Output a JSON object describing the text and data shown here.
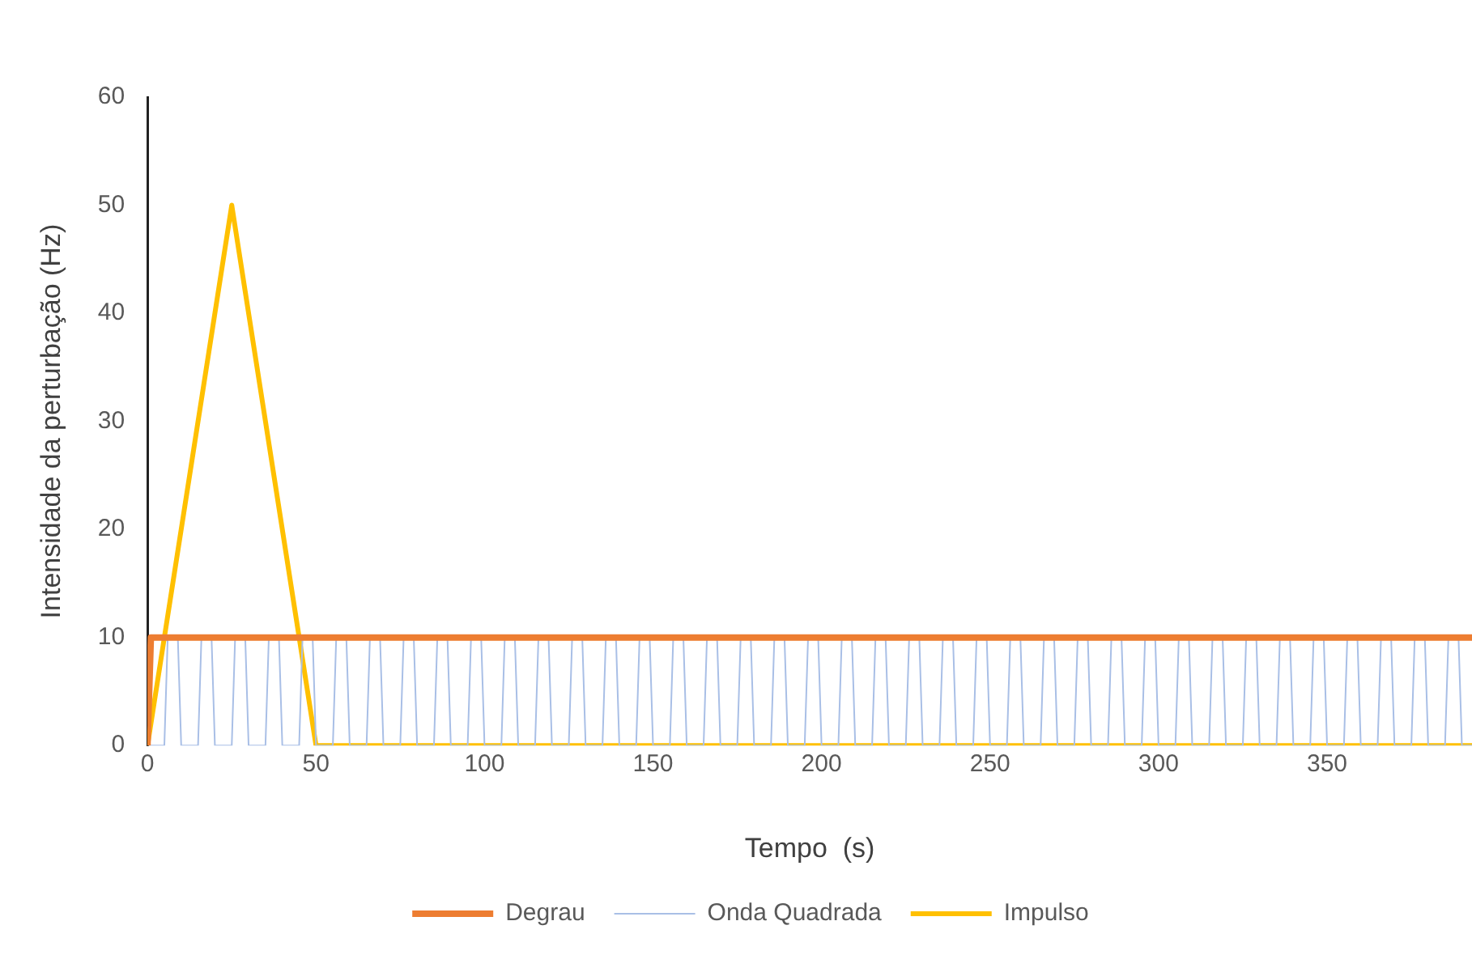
{
  "chart_data": {
    "type": "line",
    "xlabel": "Tempo  (s)",
    "ylabel": "Intensidade da perturbação (Hz)",
    "xlim": [
      0,
      393
    ],
    "xticks": [
      0,
      50,
      100,
      150,
      200,
      250,
      300,
      350
    ],
    "ylim": [
      0,
      60
    ],
    "yticks": [
      0,
      10,
      20,
      30,
      40,
      50,
      60
    ],
    "grid": false,
    "legend": "bottom",
    "marker": "none",
    "line_style": "solid",
    "series": [
      {
        "name": "Degrau",
        "color": "#ed7d31",
        "x": [
          0,
          1,
          393
        ],
        "values": [
          0,
          10,
          10
        ]
      },
      {
        "name": "Onda Quadrada",
        "color": "#a9bfe6",
        "x": [
          0,
          5,
          6,
          9,
          10,
          15,
          16,
          19,
          20,
          25,
          26,
          29,
          30,
          35,
          36,
          39,
          40,
          45,
          46,
          49,
          50,
          55,
          56,
          59,
          60,
          65,
          66,
          69,
          70,
          75,
          76,
          79,
          80,
          85,
          86,
          89,
          90,
          95,
          96,
          99,
          100,
          105,
          106,
          109,
          110,
          115,
          116,
          119,
          120,
          125,
          126,
          129,
          130,
          135,
          136,
          139,
          140,
          145,
          146,
          149,
          150,
          155,
          156,
          159,
          160,
          165,
          166,
          169,
          170,
          175,
          176,
          179,
          180,
          185,
          186,
          189,
          190,
          195,
          196,
          199,
          200,
          205,
          206,
          209,
          210,
          215,
          216,
          219,
          220,
          225,
          226,
          229,
          230,
          235,
          236,
          239,
          240,
          245,
          246,
          249,
          250,
          255,
          256,
          259,
          260,
          265,
          266,
          269,
          270,
          275,
          276,
          279,
          280,
          285,
          286,
          289,
          290,
          295,
          296,
          299,
          300,
          305,
          306,
          309,
          310,
          315,
          316,
          319,
          320,
          325,
          326,
          329,
          330,
          335,
          336,
          339,
          340,
          345,
          346,
          349,
          350,
          355,
          356,
          359,
          360,
          365,
          366,
          369,
          370,
          375,
          376,
          379,
          380,
          385,
          386,
          389,
          390,
          393
        ],
        "values": [
          0,
          0,
          10,
          10,
          0,
          0,
          10,
          10,
          0,
          0,
          10,
          10,
          0,
          0,
          10,
          10,
          0,
          0,
          10,
          10,
          0,
          0,
          10,
          10,
          0,
          0,
          10,
          10,
          0,
          0,
          10,
          10,
          0,
          0,
          10,
          10,
          0,
          0,
          10,
          10,
          0,
          0,
          10,
          10,
          0,
          0,
          10,
          10,
          0,
          0,
          10,
          10,
          0,
          0,
          10,
          10,
          0,
          0,
          10,
          10,
          0,
          0,
          10,
          10,
          0,
          0,
          10,
          10,
          0,
          0,
          10,
          10,
          0,
          0,
          10,
          10,
          0,
          0,
          10,
          10,
          0,
          0,
          10,
          10,
          0,
          0,
          10,
          10,
          0,
          0,
          10,
          10,
          0,
          0,
          10,
          10,
          0,
          0,
          10,
          10,
          0,
          0,
          10,
          10,
          0,
          0,
          10,
          10,
          0,
          0,
          10,
          10,
          0,
          0,
          10,
          10,
          0,
          0,
          10,
          10,
          0,
          0,
          10,
          10,
          0,
          0,
          10,
          10,
          0,
          0,
          10,
          10,
          0,
          0,
          10,
          10,
          0,
          0,
          10,
          10,
          0,
          0,
          10,
          10,
          0,
          0,
          10,
          10,
          0,
          0,
          10,
          10,
          0,
          0,
          10,
          10,
          0,
          0
        ]
      },
      {
        "name": "Impulso",
        "color": "#ffc000",
        "x": [
          0,
          25,
          50,
          393
        ],
        "values": [
          0,
          50,
          0,
          0
        ]
      }
    ]
  }
}
